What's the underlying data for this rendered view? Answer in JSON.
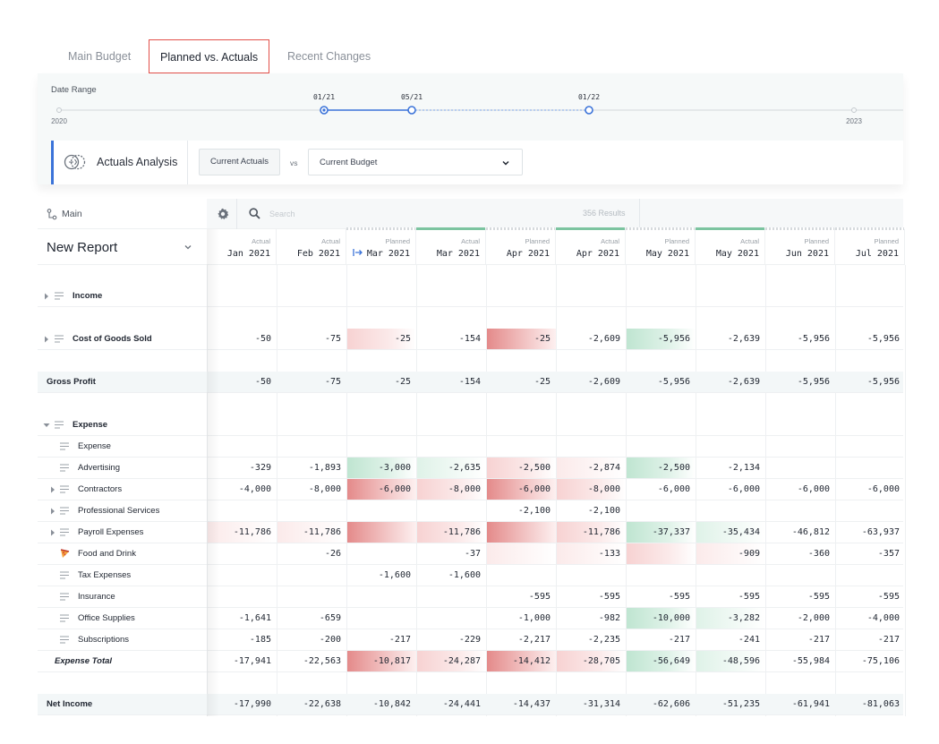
{
  "tabs": [
    {
      "label": "Main Budget",
      "active": false
    },
    {
      "label": "Planned vs. Actuals",
      "active": true
    },
    {
      "label": "Recent Changes",
      "active": false
    }
  ],
  "date_range": {
    "label": "Date Range",
    "start_label": "2020",
    "end_label": "2023",
    "markers": [
      "01/21",
      "05/21",
      "01/22"
    ]
  },
  "analysis": {
    "title": "Actuals Analysis",
    "left_button": "Current Actuals",
    "vs_label": "vs",
    "compare_select": "Current Budget"
  },
  "grid": {
    "tree_label": "Main",
    "report_title": "New Report",
    "search_placeholder": "Search",
    "results": "356 Results",
    "columns": [
      {
        "type": "Actual",
        "month": "Jan 2021"
      },
      {
        "type": "Actual",
        "month": "Feb 2021"
      },
      {
        "type": "Planned",
        "month": "Mar 2021"
      },
      {
        "type": "Actual",
        "month": "Mar 2021"
      },
      {
        "type": "Planned",
        "month": "Apr 2021"
      },
      {
        "type": "Actual",
        "month": "Apr 2021"
      },
      {
        "type": "Planned",
        "month": "May 2021"
      },
      {
        "type": "Actual",
        "month": "May 2021"
      },
      {
        "type": "Planned",
        "month": "Jun 2021"
      },
      {
        "type": "Planned",
        "month": "Jul 2021"
      }
    ],
    "rows": [
      {
        "label": "Income",
        "values": [
          "",
          "",
          "",
          "",
          "",
          "",
          "",
          "",
          "",
          ""
        ]
      },
      {
        "label": "Cost of Goods Sold",
        "values": [
          "-50",
          "-75",
          "-25",
          "-154",
          "-25",
          "-2,609",
          "-5,956",
          "-2,639",
          "-5,956",
          "-5,956"
        ]
      },
      {
        "label": "Gross Profit",
        "values": [
          "-50",
          "-75",
          "-25",
          "-154",
          "-25",
          "-2,609",
          "-5,956",
          "-2,639",
          "-5,956",
          "-5,956"
        ]
      },
      {
        "label": "Expense",
        "values": [
          "",
          "",
          "",
          "",
          "",
          "",
          "",
          "",
          "",
          ""
        ]
      },
      {
        "label": "Expense",
        "values": [
          "",
          "",
          "",
          "",
          "",
          "",
          "",
          "",
          "",
          ""
        ]
      },
      {
        "label": "Advertising",
        "values": [
          "-329",
          "-1,893",
          "-3,000",
          "-2,635",
          "-2,500",
          "-2,874",
          "-2,500",
          "-2,134",
          "",
          ""
        ]
      },
      {
        "label": "Contractors",
        "values": [
          "-4,000",
          "-8,000",
          "-6,000",
          "-8,000",
          "-6,000",
          "-8,000",
          "-6,000",
          "-6,000",
          "-6,000",
          "-6,000"
        ]
      },
      {
        "label": "Professional Services",
        "values": [
          "",
          "",
          "",
          "",
          "-2,100",
          "-2,100",
          "",
          "",
          "",
          ""
        ]
      },
      {
        "label": "Payroll Expenses",
        "values": [
          "-11,786",
          "-11,786",
          "",
          "-11,786",
          "",
          "-11,786",
          "-37,337",
          "-35,434",
          "-46,812",
          "-63,937"
        ]
      },
      {
        "label": "Food and Drink",
        "values": [
          "",
          "-26",
          "",
          "-37",
          "",
          "-133",
          "",
          "-909",
          "-360",
          "-357"
        ]
      },
      {
        "label": "Tax Expenses",
        "values": [
          "",
          "",
          "-1,600",
          "-1,600",
          "",
          "",
          "",
          "",
          "",
          ""
        ]
      },
      {
        "label": "Insurance",
        "values": [
          "",
          "",
          "",
          "",
          "-595",
          "-595",
          "-595",
          "-595",
          "-595",
          "-595"
        ]
      },
      {
        "label": "Office Supplies",
        "values": [
          "-1,641",
          "-659",
          "",
          "",
          "-1,000",
          "-982",
          "-10,000",
          "-3,282",
          "-2,000",
          "-4,000"
        ]
      },
      {
        "label": "Subscriptions",
        "values": [
          "-185",
          "-200",
          "-217",
          "-229",
          "-2,217",
          "-2,235",
          "-217",
          "-241",
          "-217",
          "-217"
        ]
      },
      {
        "label": "Expense Total",
        "values": [
          "-17,941",
          "-22,563",
          "-10,817",
          "-24,287",
          "-14,412",
          "-28,705",
          "-56,649",
          "-48,596",
          "-55,984",
          "-75,106"
        ]
      },
      {
        "label": "Net Income",
        "values": [
          "-17,990",
          "-22,638",
          "-10,842",
          "-24,441",
          "-14,437",
          "-31,314",
          "-62,606",
          "-51,235",
          "-61,941",
          "-81,063"
        ]
      }
    ]
  },
  "colors": {
    "active_tab_border": "#e2504a",
    "accent_blue": "#3b73d9",
    "variance_over": "#e48a8a",
    "variance_under": "#bfe5d1"
  }
}
